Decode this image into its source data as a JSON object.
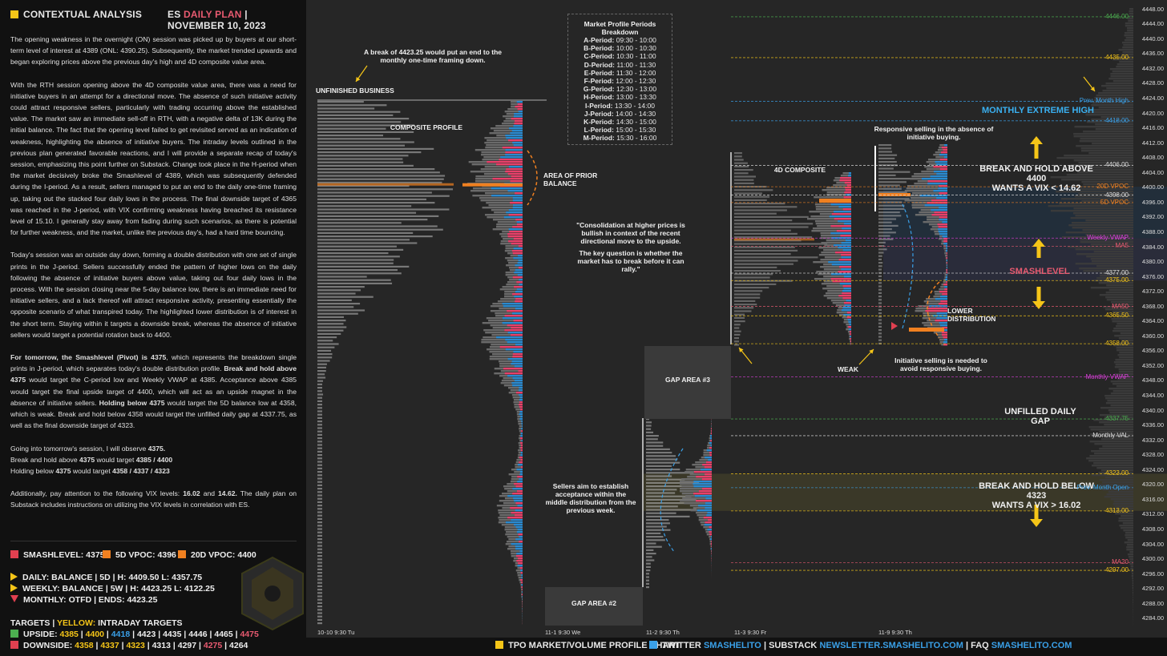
{
  "header": {
    "left_title": "CONTEXTUAL ANALYSIS",
    "symbol": "ES",
    "plan": "DAILY PLAN",
    "sep": "|",
    "date": "NOVEMBER 10, 2023"
  },
  "paragraphs": [
    "The opening weakness in the overnight (ON) session was picked up by buyers at our short-term level of interest at 4389 (ONL: 4390.25). Subsequently, the market trended upwards and began exploring prices above the previous day's high and 4D composite value area.",
    "With the RTH session opening above the 4D composite value area, there was a need for initiative buyers in an attempt for a directional move. The absence of such initiative activity could attract responsive sellers, particularly with trading occurring above the established value. The market saw an immediate sell-off in RTH, with a negative delta of 13K during the initial balance. The fact that the opening level failed to get revisited served as an indication of weakness, highlighting the absence of initiative buyers. The intraday levels outlined in the previous plan generated favorable reactions, and I will provide a separate recap of today's session, emphasizing this point further on Substack. Change took place in the H-period when the market decisively broke the Smashlevel of 4389, which was subsequently defended during the I-period. As a result, sellers managed to put an end to the daily one-time framing up, taking out the stacked four daily lows in the process. The final downside target of 4365 was reached in the J-period, with VIX confirming weakness having breached its resistance level of 15.10. I generally stay away from fading during such scenarios, as there is potential for further weakness, and the market, unlike the previous day's, had a hard time bouncing.",
    "Today's session was an outside day down, forming a double distribution with one set of single prints in the J-period. Sellers successfully ended the pattern of higher lows on the daily following the absence of initiative buyers above value, taking out four daily lows in the process. With the session closing near the 5-day balance low, there is an immediate need for initiative sellers, and a lack thereof will attract responsive activity, presenting essentially the opposite scenario of what transpired today. The highlighted lower distribution is of interest in the short term. Staying within it targets a downside break, whereas the absence of initiative sellers would target a potential rotation back to 4400."
  ],
  "tomorrow": {
    "p1": "For tomorrow, the Smashlevel (Pivot) is 4375",
    "p2": ", which represents the breakdown single prints in J-period, which separates today's double distribution profile. ",
    "p3": "Break and hold above 4375",
    "p4": " would target the C-period low and Weekly VWAP at 4385. Acceptance above 4385 would target the final upside target of 4400, which will act as an upside magnet in the absence of initiative sellers. ",
    "p5": "Holding below 4375",
    "p6": " would target the 5D balance low at 4358, which is weak. Break and hold below 4358 would target the unfilled daily gap at 4337.75, as well as the final downside target of 4323."
  },
  "observe": {
    "l1a": "Going into tomorrow's session, I will observe ",
    "l1b": "4375.",
    "l2a": "Break and hold above ",
    "l2b": "4375",
    "l2c": " would target ",
    "l2d": "4385 / 4400",
    "l3a": "Holding below ",
    "l3b": "4375",
    "l3c": " would target ",
    "l3d": "4358 / 4337 / 4323"
  },
  "vix_note": {
    "a": "Additionally, pay attention to the following VIX levels: ",
    "b": "16.02",
    "c": " and ",
    "d": "14.62.",
    "e": " The daily plan on Substack includes instructions on utilizing the VIX levels in correlation with ES."
  },
  "levels": {
    "smash": "SMASHLEVEL: 4375",
    "vpoc5": "5D VPOC: 4396",
    "vpoc20": "20D VPOC: 4400",
    "daily": "DAILY: BALANCE | 5D | H: 4409.50 L: 4357.75",
    "weekly": "WEEKLY: BALANCE | 5W | H: 4423.25 L: 4122.25",
    "monthly": "MONTHLY: OTFD | ENDS: 4423.25",
    "colors": {
      "smash": "#e04050",
      "vpoc5": "#f08020",
      "vpoc20": "#f08020"
    }
  },
  "targets": {
    "title_a": "TARGETS",
    "title_b": "|",
    "title_c": "YELLOW:",
    "title_d": "INTRADAY TARGETS",
    "upside_label": "UPSIDE:",
    "upside": [
      "4385",
      "4400",
      "4418",
      "4423",
      "4435",
      "4446",
      "4465",
      "4475"
    ],
    "downside_label": "DOWNSIDE:",
    "downside": [
      "4358",
      "4337",
      "4323",
      "4313",
      "4297",
      "4275",
      "4264"
    ]
  },
  "footer": {
    "tpo": "TPO MARKET/VOLUME PROFILE CHART",
    "twitter": "TWITTER",
    "twitter_handle": "SMASHELITO",
    "substack": "SUBSTACK",
    "substack_url": "NEWSLETTER.SMASHELITO.COM",
    "faq": "FAQ",
    "faq_url": "SMASHELITO.COM",
    "sep": "|"
  },
  "periods": {
    "title": "Market Profile Periods Breakdown",
    "items": [
      {
        "p": "A-Period:",
        "t": "09:30 - 10:00"
      },
      {
        "p": "B-Period:",
        "t": "10:00 - 10:30"
      },
      {
        "p": "C-Period:",
        "t": "10:30 - 11:00"
      },
      {
        "p": "D-Period:",
        "t": "11:00 - 11:30"
      },
      {
        "p": "E-Period:",
        "t": "11:30 - 12:00"
      },
      {
        "p": "F-Period:",
        "t": "12:00 - 12:30"
      },
      {
        "p": "G-Period:",
        "t": "12:30 - 13:00"
      },
      {
        "p": "H-Period:",
        "t": "13:00 - 13:30"
      },
      {
        "p": "I-Period:",
        "t": "13:30 - 14:00"
      },
      {
        "p": "J-Period:",
        "t": "14:00 - 14:30"
      },
      {
        "p": "K-Period:",
        "t": "14:30 - 15:00"
      },
      {
        "p": "L-Period:",
        "t": "15:00 - 15:30"
      },
      {
        "p": "M-Period:",
        "t": "15:30 - 16:00"
      }
    ]
  },
  "annotations": {
    "break4423": "A break of 4423.25 would put an end to the monthly one-time framing down.",
    "unfinished": "UNFINISHED BUSINESS",
    "composite": "COMPOSITE PROFILE",
    "area_prior": "AREA OF PRIOR BALANCE",
    "consolidation": "\"Consolidation at higher prices is bullish in context of the recent directional move to the upside.",
    "key_question": "The key question is whether the market has to break before it can rally.\"",
    "fourd": "4D COMPOSITE",
    "responsive": "Responsive selling in the absence of initiative buying.",
    "break_above": "BREAK AND HOLD ABOVE 4400",
    "vix_above": "WANTS A VIX < 14.62",
    "monthly_extreme": "MONTHLY EXTREME HIGH",
    "smashlevel": "SMASHLEVEL",
    "lower_dist": "LOWER DISTRIBUTION",
    "weak": "WEAK",
    "initiative": "Initiative selling is needed to avoid responsive buying.",
    "unfilled_gap": "UNFILLED DAILY GAP",
    "break_below": "BREAK AND HOLD BELOW 4323",
    "vix_below": "WANTS A VIX > 16.02",
    "sellers": "Sellers aim to establish acceptance within the middle distribution from the previous week.",
    "gap3": "GAP AREA #3",
    "gap2": "GAP AREA #2"
  },
  "chart_data": {
    "type": "tpo-profile",
    "ylim": [
      4283,
      4449
    ],
    "yticks": [
      4448,
      4444,
      4440,
      4436,
      4432,
      4428,
      4424,
      4420,
      4416,
      4412,
      4408,
      4404,
      4400,
      4396,
      4392,
      4388,
      4384,
      4380,
      4376,
      4372,
      4368,
      4364,
      4360,
      4356,
      4352,
      4348,
      4344,
      4340,
      4336,
      4332,
      4328,
      4324,
      4320,
      4316,
      4312,
      4308,
      4304,
      4300,
      4296,
      4292,
      4288,
      4284
    ],
    "xlabels": [
      {
        "label": "10-10  9:30 Tu",
        "x": 396
      },
      {
        "label": "11-1  9:30 We",
        "x": 680
      },
      {
        "label": "11-2  9:30 Th",
        "x": 806
      },
      {
        "label": "11-3  9:30 Fr",
        "x": 916
      },
      {
        "label": "11-9  9:30 Th",
        "x": 1096
      }
    ],
    "level_lines": [
      {
        "value": 4446.0,
        "label": "4446.00",
        "color": "#4caf50"
      },
      {
        "value": 4435.0,
        "label": "4435.00",
        "color": "#f5c518"
      },
      {
        "value": 4423.25,
        "label": "Prev. Month High",
        "color": "#3aa0e8"
      },
      {
        "value": 4418.0,
        "label": "4418.00",
        "color": "#3aa0e8"
      },
      {
        "value": 4406.0,
        "label": "4406.00",
        "color": "#dddddd"
      },
      {
        "value": 4400.25,
        "label": "20D VPOC",
        "color": "#f08020"
      },
      {
        "value": 4398.0,
        "label": "4398.00",
        "color": "#dddddd"
      },
      {
        "value": 4396.0,
        "label": "5D VPOC",
        "color": "#f08020"
      },
      {
        "value": 4386.42,
        "label": "Weekly VWAP",
        "color": "#e040e0"
      },
      {
        "value": 4384.25,
        "label": "MA5",
        "color": "#e85a70"
      },
      {
        "value": 4377.0,
        "label": "4377.00",
        "color": "#dddddd"
      },
      {
        "value": 4375.0,
        "label": "4375.00",
        "color": "#f5c518"
      },
      {
        "value": 4368.03,
        "label": "MA50",
        "color": "#e85a70"
      },
      {
        "value": 4365.5,
        "label": "4365.50",
        "color": "#f5c518"
      },
      {
        "value": 4358.0,
        "label": "4358.00",
        "color": "#f5c518"
      },
      {
        "value": 4349.07,
        "label": "Monthly VWAP",
        "color": "#e040e0"
      },
      {
        "value": 4337.75,
        "label": "4337.75",
        "color": "#4caf50"
      },
      {
        "value": 4333.25,
        "label": "Monthly VAL",
        "color": "#dddddd"
      },
      {
        "value": 4323.0,
        "label": "4323.00",
        "color": "#f5c518"
      },
      {
        "value": 4319.25,
        "label": "Prev. Month Open",
        "color": "#3aa0e8"
      },
      {
        "value": 4313.0,
        "label": "4313.00",
        "color": "#f5c518"
      },
      {
        "value": 4299.09,
        "label": "MA20",
        "color": "#e85a70"
      },
      {
        "value": 4297.0,
        "label": "4297.00",
        "color": "#f5c518"
      }
    ]
  }
}
